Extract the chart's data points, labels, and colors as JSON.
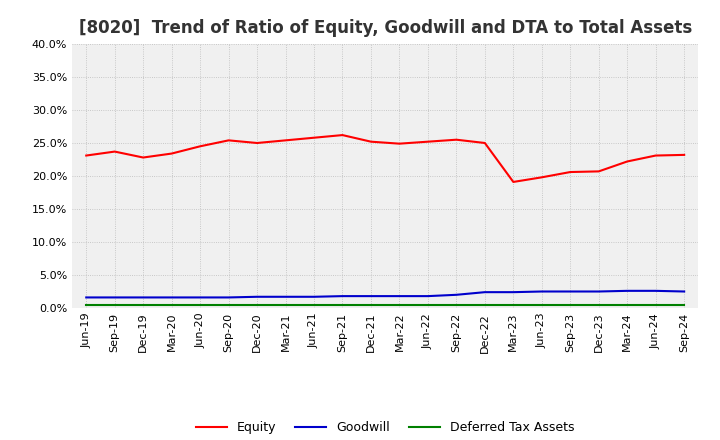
{
  "title": "[8020]  Trend of Ratio of Equity, Goodwill and DTA to Total Assets",
  "x_labels": [
    "Jun-19",
    "Sep-19",
    "Dec-19",
    "Mar-20",
    "Jun-20",
    "Sep-20",
    "Dec-20",
    "Mar-21",
    "Jun-21",
    "Sep-21",
    "Dec-21",
    "Mar-22",
    "Jun-22",
    "Sep-22",
    "Dec-22",
    "Mar-23",
    "Jun-23",
    "Sep-23",
    "Dec-23",
    "Mar-24",
    "Jun-24",
    "Sep-24"
  ],
  "equity": [
    0.231,
    0.237,
    0.228,
    0.234,
    0.245,
    0.254,
    0.25,
    0.254,
    0.258,
    0.262,
    0.252,
    0.249,
    0.252,
    0.255,
    0.25,
    0.191,
    0.198,
    0.206,
    0.207,
    0.222,
    0.231,
    0.232
  ],
  "goodwill": [
    0.016,
    0.016,
    0.016,
    0.016,
    0.016,
    0.016,
    0.017,
    0.017,
    0.017,
    0.018,
    0.018,
    0.018,
    0.018,
    0.02,
    0.024,
    0.024,
    0.025,
    0.025,
    0.025,
    0.026,
    0.026,
    0.025
  ],
  "dta": [
    0.005,
    0.005,
    0.005,
    0.005,
    0.005,
    0.005,
    0.005,
    0.005,
    0.005,
    0.005,
    0.005,
    0.005,
    0.005,
    0.005,
    0.005,
    0.005,
    0.005,
    0.005,
    0.005,
    0.005,
    0.005,
    0.005
  ],
  "equity_color": "#FF0000",
  "goodwill_color": "#0000CC",
  "dta_color": "#008000",
  "ylim": [
    0.0,
    0.4
  ],
  "yticks": [
    0.0,
    0.05,
    0.1,
    0.15,
    0.2,
    0.25,
    0.3,
    0.35,
    0.4
  ],
  "outer_bg": "#FFFFFF",
  "plot_bg": "#F0F0F0",
  "grid_color": "#BBBBBB",
  "title_fontsize": 12,
  "tick_fontsize": 8,
  "legend_labels": [
    "Equity",
    "Goodwill",
    "Deferred Tax Assets"
  ]
}
